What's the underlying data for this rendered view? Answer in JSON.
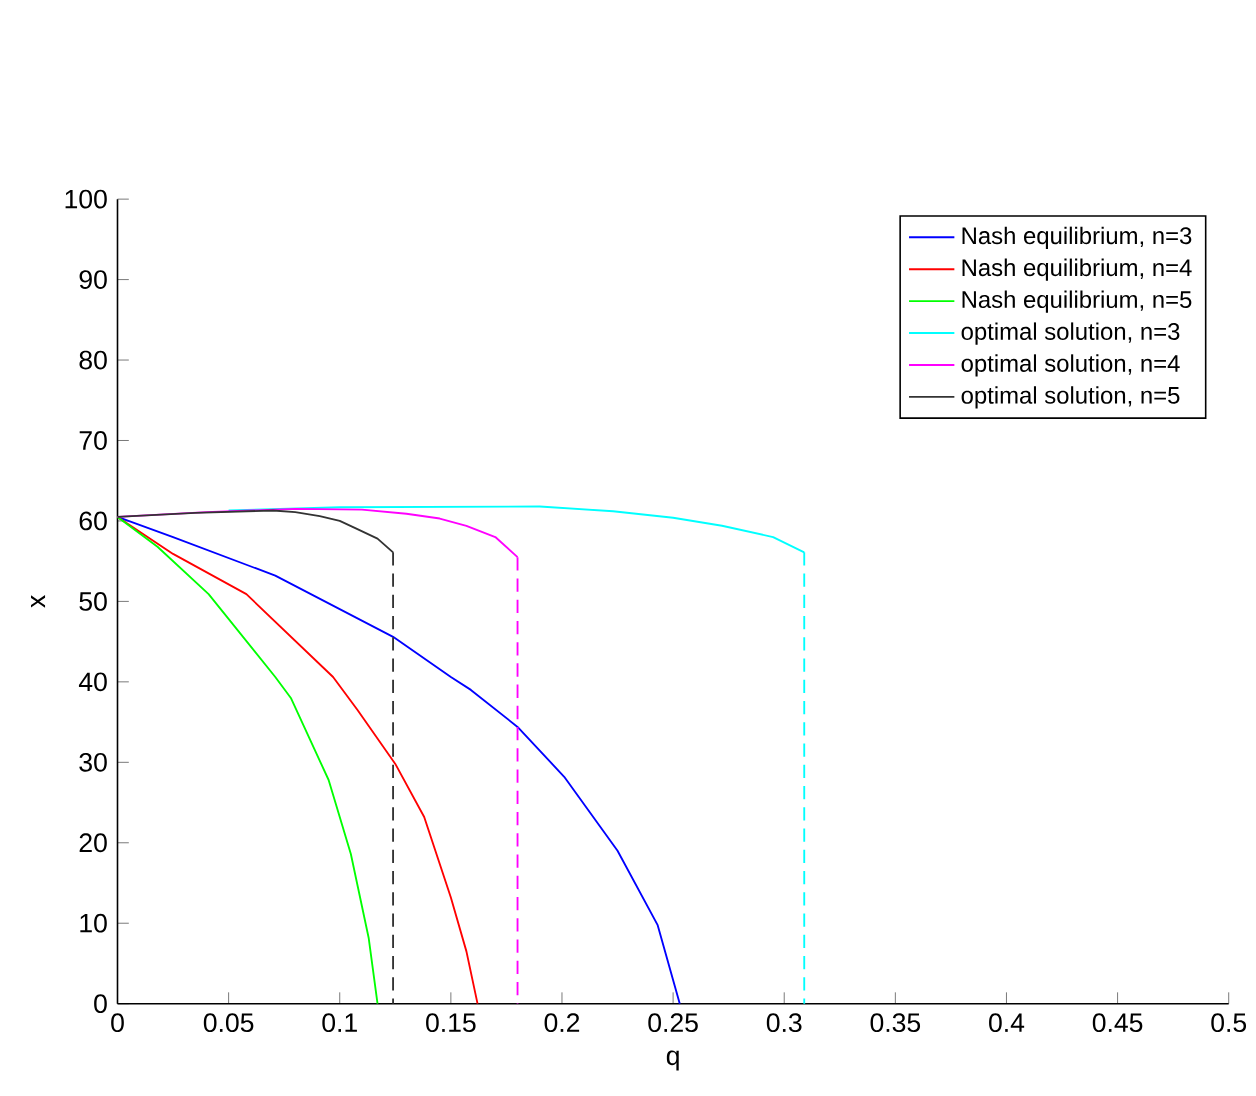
{
  "chart_data": {
    "type": "line",
    "xlabel": "q",
    "ylabel": "x",
    "xlim": [
      0,
      0.5
    ],
    "ylim": [
      0,
      100
    ],
    "xticks": [
      0,
      0.05,
      0.1,
      0.15,
      0.2,
      0.25,
      0.3,
      0.35,
      0.4,
      0.45,
      0.5
    ],
    "yticks": [
      0,
      10,
      20,
      30,
      40,
      50,
      60,
      70,
      80,
      90,
      100
    ],
    "legend": "top right",
    "grid": false,
    "series": [
      {
        "name": "Nash equilibrium, n=3",
        "color": "#0000ff",
        "x": [
          0,
          0.025,
          0.071,
          0.124,
          0.15,
          0.159,
          0.18,
          0.201,
          0.225,
          0.243,
          0.253
        ],
        "values": [
          60.5,
          58,
          53.2,
          45.6,
          40.6,
          39,
          34.4,
          28.2,
          19,
          9.8,
          0
        ]
      },
      {
        "name": "Nash equilibrium, n=4",
        "color": "#ff0000",
        "x": [
          0,
          0.025,
          0.058,
          0.097,
          0.108,
          0.125,
          0.138,
          0.15,
          0.157,
          0.162
        ],
        "values": [
          60.5,
          55.9,
          50.9,
          40.6,
          36.5,
          29.8,
          23.2,
          13.2,
          6.5,
          0
        ]
      },
      {
        "name": "Nash equilibrium, n=5",
        "color": "#00ff00",
        "x": [
          0,
          0.018,
          0.041,
          0.071,
          0.078,
          0.095,
          0.105,
          0.113,
          0.117
        ],
        "values": [
          60.5,
          56.8,
          50.9,
          40.6,
          38,
          27.8,
          18.6,
          8.2,
          0
        ]
      },
      {
        "name": "optimal solution, n=3",
        "color": "#00ffff",
        "x": [
          0.05,
          0.1,
          0.19,
          0.223,
          0.25,
          0.272,
          0.295,
          0.309
        ],
        "values": [
          61.3,
          61.7,
          61.8,
          61.2,
          60.4,
          59.4,
          58,
          56.1
        ]
      },
      {
        "name": "optimal solution, n=4",
        "color": "#ff00ff",
        "x": [
          0,
          0.04,
          0.08,
          0.11,
          0.13,
          0.145,
          0.157,
          0.17,
          0.18
        ],
        "values": [
          60.5,
          61.1,
          61.5,
          61.4,
          60.9,
          60.3,
          59.4,
          58,
          55.5
        ]
      },
      {
        "name": "optimal solution, n=5",
        "color": "#333333",
        "x": [
          0,
          0.035,
          0.07,
          0.08,
          0.091,
          0.1,
          0.107,
          0.117,
          0.124
        ],
        "values": [
          60.5,
          61,
          61.3,
          61.1,
          60.6,
          60,
          59.1,
          57.8,
          56.1
        ]
      },
      {
        "color": "#00ffff",
        "line_style": "dashed",
        "x": [
          0.309,
          0.309
        ],
        "values": [
          56.1,
          0
        ]
      },
      {
        "color": "#ff00ff",
        "line_style": "dashed",
        "x": [
          0.18,
          0.18
        ],
        "values": [
          55.5,
          0
        ]
      },
      {
        "color": "#333333",
        "line_style": "dashed",
        "x": [
          0.124,
          0.124
        ],
        "values": [
          56.1,
          0
        ]
      }
    ]
  }
}
